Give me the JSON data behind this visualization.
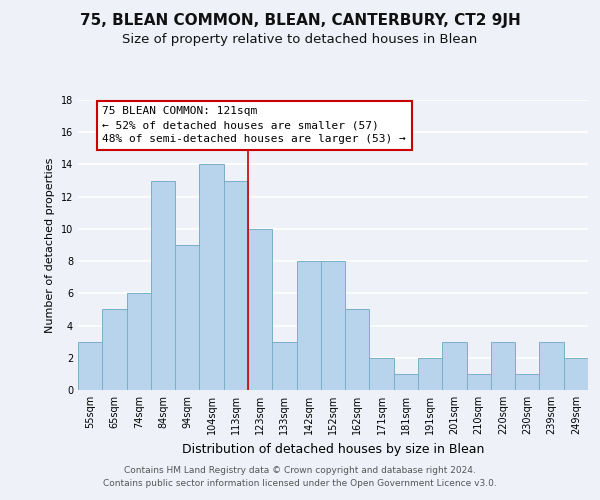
{
  "title": "75, BLEAN COMMON, BLEAN, CANTERBURY, CT2 9JH",
  "subtitle": "Size of property relative to detached houses in Blean",
  "xlabel": "Distribution of detached houses by size in Blean",
  "ylabel": "Number of detached properties",
  "footer_line1": "Contains HM Land Registry data © Crown copyright and database right 2024.",
  "footer_line2": "Contains public sector information licensed under the Open Government Licence v3.0.",
  "bar_labels": [
    "55sqm",
    "65sqm",
    "74sqm",
    "84sqm",
    "94sqm",
    "104sqm",
    "113sqm",
    "123sqm",
    "133sqm",
    "142sqm",
    "152sqm",
    "162sqm",
    "171sqm",
    "181sqm",
    "191sqm",
    "201sqm",
    "210sqm",
    "220sqm",
    "230sqm",
    "239sqm",
    "249sqm"
  ],
  "bar_values": [
    3,
    5,
    6,
    13,
    9,
    14,
    13,
    10,
    3,
    8,
    8,
    5,
    2,
    1,
    2,
    3,
    1,
    3,
    1,
    3,
    2
  ],
  "bar_color": "#b8d4ed",
  "bar_edge_color": "#7aafc8",
  "highlight_index": 6,
  "highlight_line_color": "#cc0000",
  "annotation_title": "75 BLEAN COMMON: 121sqm",
  "annotation_line1": "← 52% of detached houses are smaller (57)",
  "annotation_line2": "48% of semi-detached houses are larger (53) →",
  "annotation_box_color": "#ffffff",
  "annotation_box_edge": "#cc0000",
  "ylim": [
    0,
    18
  ],
  "yticks": [
    0,
    2,
    4,
    6,
    8,
    10,
    12,
    14,
    16,
    18
  ],
  "background_color": "#eef2f8",
  "grid_color": "#ffffff",
  "title_fontsize": 11,
  "subtitle_fontsize": 9.5,
  "xlabel_fontsize": 9,
  "ylabel_fontsize": 8,
  "tick_fontsize": 7,
  "ann_fontsize": 8,
  "footer_fontsize": 6.5
}
